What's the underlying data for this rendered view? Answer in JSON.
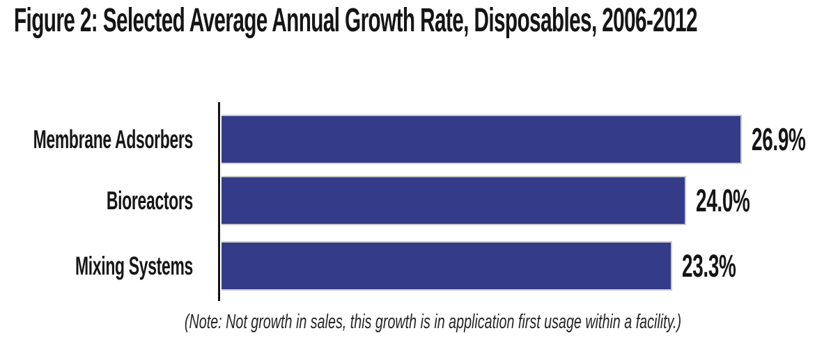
{
  "figure": {
    "title": "Figure 2: Selected Average Annual Growth Rate, Disposables, 2006-2012",
    "note": "(Note: Not growth in sales, this growth is in application first usage within a facility.)"
  },
  "colors": {
    "bar_fill": "#343b88",
    "bar_edge": "#c9c9c9",
    "axis": "#141414",
    "text": "#151515",
    "background": "#ffffff"
  },
  "chart_data": {
    "type": "bar",
    "orientation": "horizontal",
    "title": "Figure 2: Selected Average Annual Growth Rate, Disposables, 2006-2012",
    "categories": [
      "Membrane Adsorbers",
      "Bioreactors",
      "Mixing Systems"
    ],
    "values": [
      26.9,
      24.0,
      23.3
    ],
    "value_labels": [
      "26.9%",
      "24.0%",
      "23.3%"
    ],
    "xlabel": "",
    "ylabel": "",
    "xlim": [
      0,
      30
    ],
    "grid": false,
    "legend": null,
    "annotations": [
      "(Note: Not growth in sales, this growth is in application first usage within a facility.)"
    ]
  }
}
